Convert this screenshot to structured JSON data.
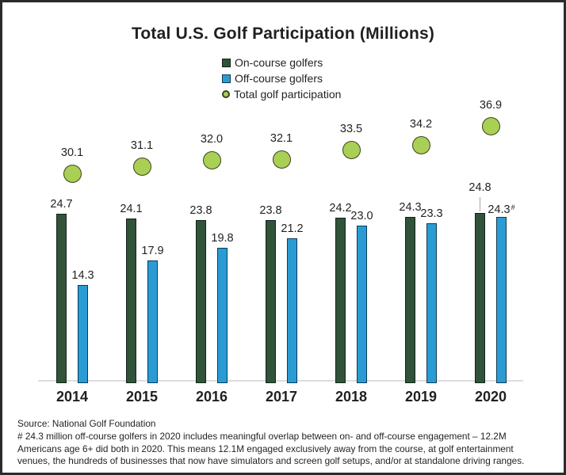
{
  "title": "Total U.S. Golf Participation (Millions)",
  "legend": [
    {
      "label": "On-course golfers",
      "marker": "square",
      "color": "#305339",
      "border_color": "#15231a"
    },
    {
      "label": "Off-course golfers",
      "marker": "square",
      "color": "#2a9cd3",
      "border_color": "#0d3a57"
    },
    {
      "label": "Total golf participation",
      "marker": "circle",
      "color": "#a9cf55",
      "border_color": "#3c431f"
    }
  ],
  "chart_data": {
    "type": "bar",
    "title": "Total U.S. Golf Participation (Millions)",
    "categories": [
      "2014",
      "2015",
      "2016",
      "2017",
      "2018",
      "2019",
      "2020"
    ],
    "series": [
      {
        "name": "On-course golfers",
        "type": "bar",
        "color": "#305339",
        "border_color": "#15231a",
        "values": [
          24.7,
          24.1,
          23.8,
          23.8,
          24.2,
          24.3,
          24.8
        ]
      },
      {
        "name": "Off-course golfers",
        "type": "bar",
        "color": "#2a9cd3",
        "border_color": "#0d3a57",
        "values": [
          14.3,
          17.9,
          19.8,
          21.2,
          23.0,
          23.3,
          24.3
        ],
        "label_suffixes": [
          "",
          "",
          "",
          "",
          "",
          "",
          "#"
        ]
      },
      {
        "name": "Total golf participation",
        "type": "scatter",
        "color": "#a9cf55",
        "border_color": "#3c431f",
        "values": [
          30.1,
          31.1,
          32.0,
          32.1,
          33.5,
          34.2,
          36.9
        ]
      }
    ],
    "ylim": [
      0,
      42
    ],
    "grid": false,
    "legend_position": "top-center",
    "annotations": {
      "callout_year": "2020",
      "callout_series": "On-course golfers"
    }
  },
  "footer": {
    "source": "Source: National Golf Foundation",
    "note_lines": [
      "# 24.3 million off-course golfers in 2020 includes meaningful overlap between on- and off-course engagement – 12.2M",
      "Americans age 6+ did both in 2020. This means 12.1M engaged exclusively away from the course, at golf entertainment",
      "venues, the hundreds of businesses that now have simulators and screen golf setups, and/or at standalone driving ranges."
    ]
  }
}
